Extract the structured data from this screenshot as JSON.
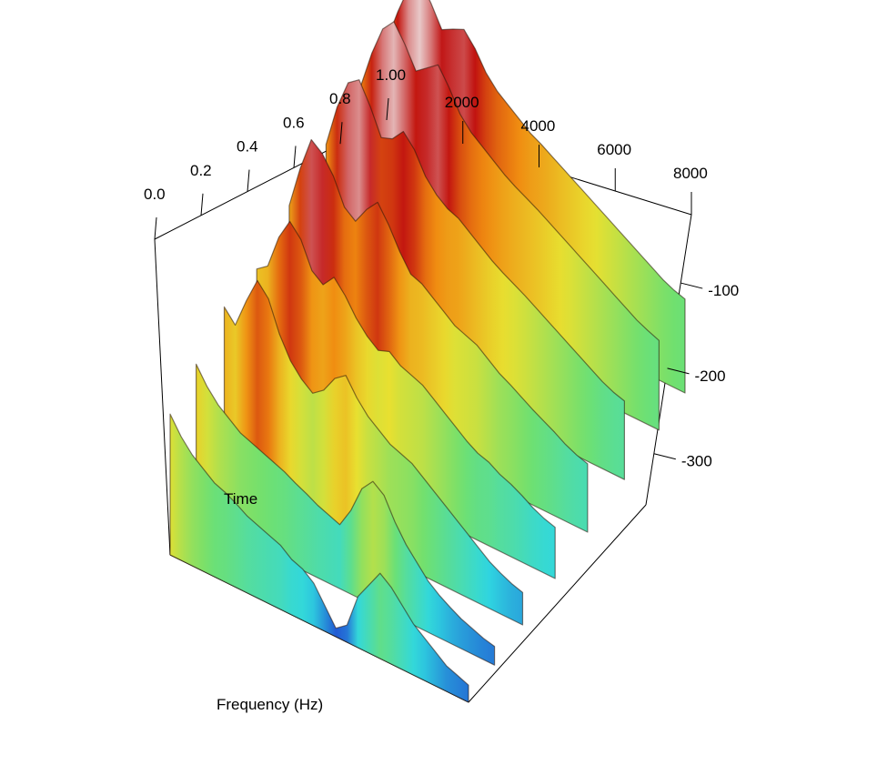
{
  "chart_data": {
    "type": "surface",
    "title": "",
    "axes": {
      "time": {
        "label": "Time",
        "ticks": [
          "0.0",
          "0.2",
          "0.4",
          "0.6",
          "0.8",
          "1.00"
        ],
        "range": [
          0,
          1
        ]
      },
      "frequency": {
        "label": "Frequency (Hz)",
        "ticks": [
          "2000",
          "4000",
          "6000",
          "8000"
        ],
        "range": [
          0,
          8000
        ]
      },
      "amplitude": {
        "label": "",
        "ticks": [
          "-100",
          "-200",
          "-300"
        ],
        "range": [
          -360,
          -20
        ]
      }
    },
    "colormap": [
      "#1f3fd0",
      "#2fd8e0",
      "#6fe070",
      "#e8e030",
      "#f08a10",
      "#c01010",
      "#f0f0f0"
    ],
    "surface_profiles": [
      {
        "time": 0.0,
        "amplitude": [
          -195,
          -215,
          -230,
          -240,
          -250,
          -255,
          -262,
          -270,
          -275,
          -280,
          -285,
          -295,
          -300,
          -310,
          -330,
          -350,
          -340,
          -300,
          -280,
          -260,
          -270,
          -285,
          -300,
          -310,
          -320,
          -330,
          -335,
          -340
        ]
      },
      {
        "time": 0.12,
        "amplitude": [
          -180,
          -200,
          -215,
          -225,
          -235,
          -240,
          -245,
          -250,
          -255,
          -262,
          -268,
          -275,
          -280,
          -285,
          -262,
          -230,
          -215,
          -225,
          -250,
          -270,
          -285,
          -300,
          -310,
          -318,
          -325,
          -330,
          -335,
          -338
        ]
      },
      {
        "time": 0.25,
        "amplitude": [
          -160,
          -175,
          -140,
          -110,
          -125,
          -160,
          -185,
          -200,
          -210,
          -200,
          -180,
          -170,
          -190,
          -205,
          -215,
          -225,
          -230,
          -235,
          -245,
          -255,
          -265,
          -275,
          -285,
          -295,
          -305,
          -312,
          -318,
          -322
        ]
      },
      {
        "time": 0.4,
        "amplitude": [
          -170,
          -160,
          -120,
          -95,
          -110,
          -140,
          -150,
          -135,
          -150,
          -170,
          -185,
          -195,
          -190,
          -200,
          -205,
          -210,
          -220,
          -230,
          -240,
          -250,
          -258,
          -262,
          -270,
          -275,
          -282,
          -290,
          -296,
          -300
        ]
      },
      {
        "time": 0.55,
        "amplitude": [
          -150,
          -100,
          -60,
          -70,
          -90,
          -120,
          -130,
          -110,
          -95,
          -115,
          -140,
          -160,
          -165,
          -175,
          -185,
          -195,
          -200,
          -205,
          -215,
          -225,
          -232,
          -240,
          -248,
          -255,
          -262,
          -270,
          -276,
          -280
        ]
      },
      {
        "time": 0.72,
        "amplitude": [
          -140,
          -90,
          -55,
          -45,
          -70,
          -100,
          -95,
          -80,
          -95,
          -120,
          -135,
          -145,
          -150,
          -160,
          -170,
          -180,
          -188,
          -195,
          -202,
          -210,
          -218,
          -226,
          -234,
          -242,
          -250,
          -258,
          -264,
          -268
        ]
      },
      {
        "time": 0.88,
        "amplitude": [
          -130,
          -85,
          -50,
          -35,
          -55,
          -80,
          -70,
          -60,
          -80,
          -105,
          -120,
          -130,
          -140,
          -150,
          -158,
          -165,
          -172,
          -180,
          -188,
          -196,
          -204,
          -212,
          -220,
          -228,
          -236,
          -244,
          -250,
          -255
        ]
      },
      {
        "time": 1.0,
        "amplitude": [
          -120,
          -80,
          -45,
          -30,
          -50,
          -75,
          -68,
          -62,
          -78,
          -100,
          -115,
          -125,
          -135,
          -145,
          -152,
          -160,
          -168,
          -176,
          -184,
          -192,
          -200,
          -208,
          -216,
          -224,
          -232,
          -240,
          -246,
          -250
        ]
      }
    ]
  }
}
